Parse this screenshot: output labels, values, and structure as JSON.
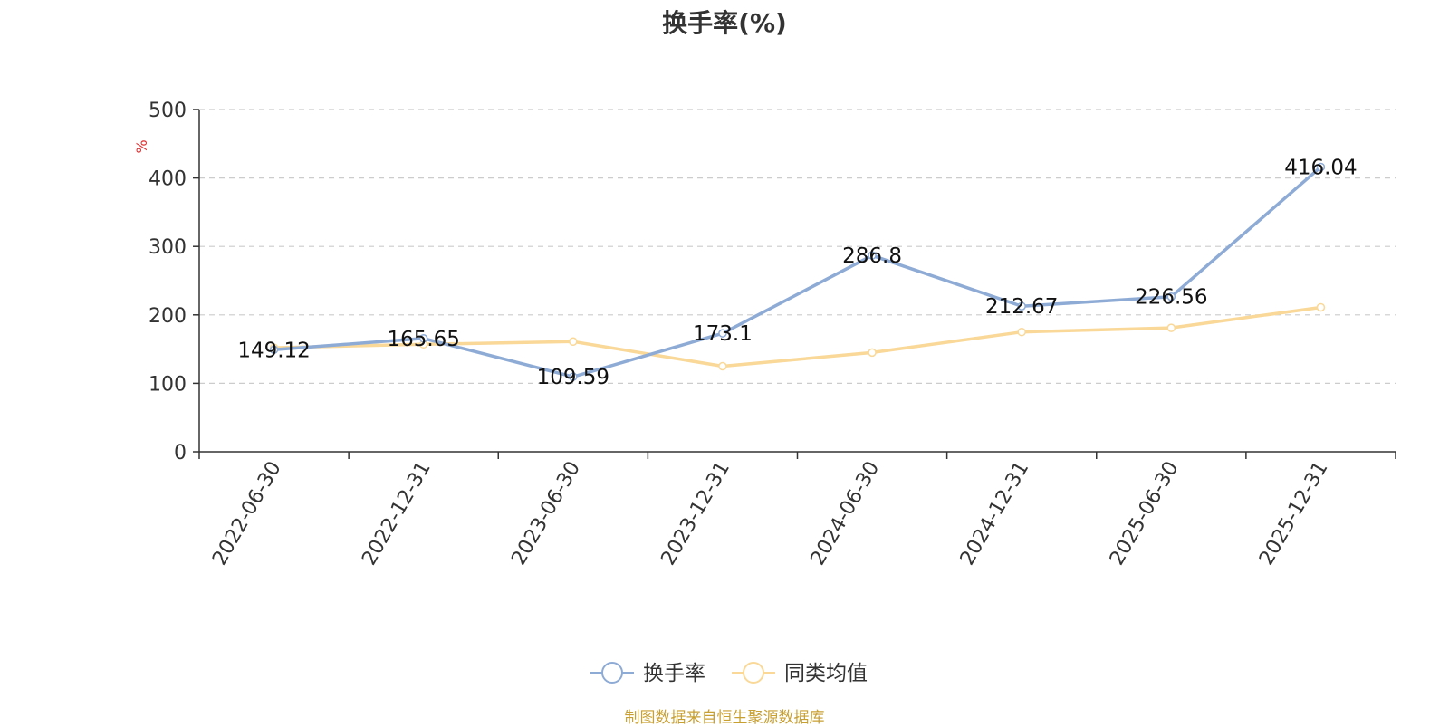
{
  "chart_data": {
    "type": "line",
    "title": "换手率(%)",
    "ylabel": "%",
    "xlabel": "",
    "ylim": [
      0,
      500
    ],
    "yticks": [
      0,
      100,
      200,
      300,
      400,
      500
    ],
    "grid": true,
    "legend_position": "bottom",
    "categories": [
      "2022-06-30",
      "2022-12-31",
      "2023-06-30",
      "2023-12-31",
      "2024-06-30",
      "2024-12-31",
      "2025-06-30",
      "2025-12-31"
    ],
    "series": [
      {
        "name": "换手率",
        "color": "#8eabd6",
        "values": [
          149.12,
          165.65,
          109.59,
          173.1,
          286.8,
          212.67,
          226.56,
          416.04
        ],
        "labels": [
          "149.12",
          "165.65",
          "109.59",
          "173.1",
          "286.8",
          "212.67",
          "226.56",
          "416.04"
        ]
      },
      {
        "name": "同类均值",
        "color": "#f9d898",
        "values": [
          152,
          157,
          161,
          125,
          145,
          175,
          181,
          211
        ]
      }
    ],
    "axis_color": "#333333",
    "grid_color": "#cccccc",
    "unit_color": "#e03030"
  },
  "footer": {
    "source": "制图数据来自恒生聚源数据库"
  }
}
